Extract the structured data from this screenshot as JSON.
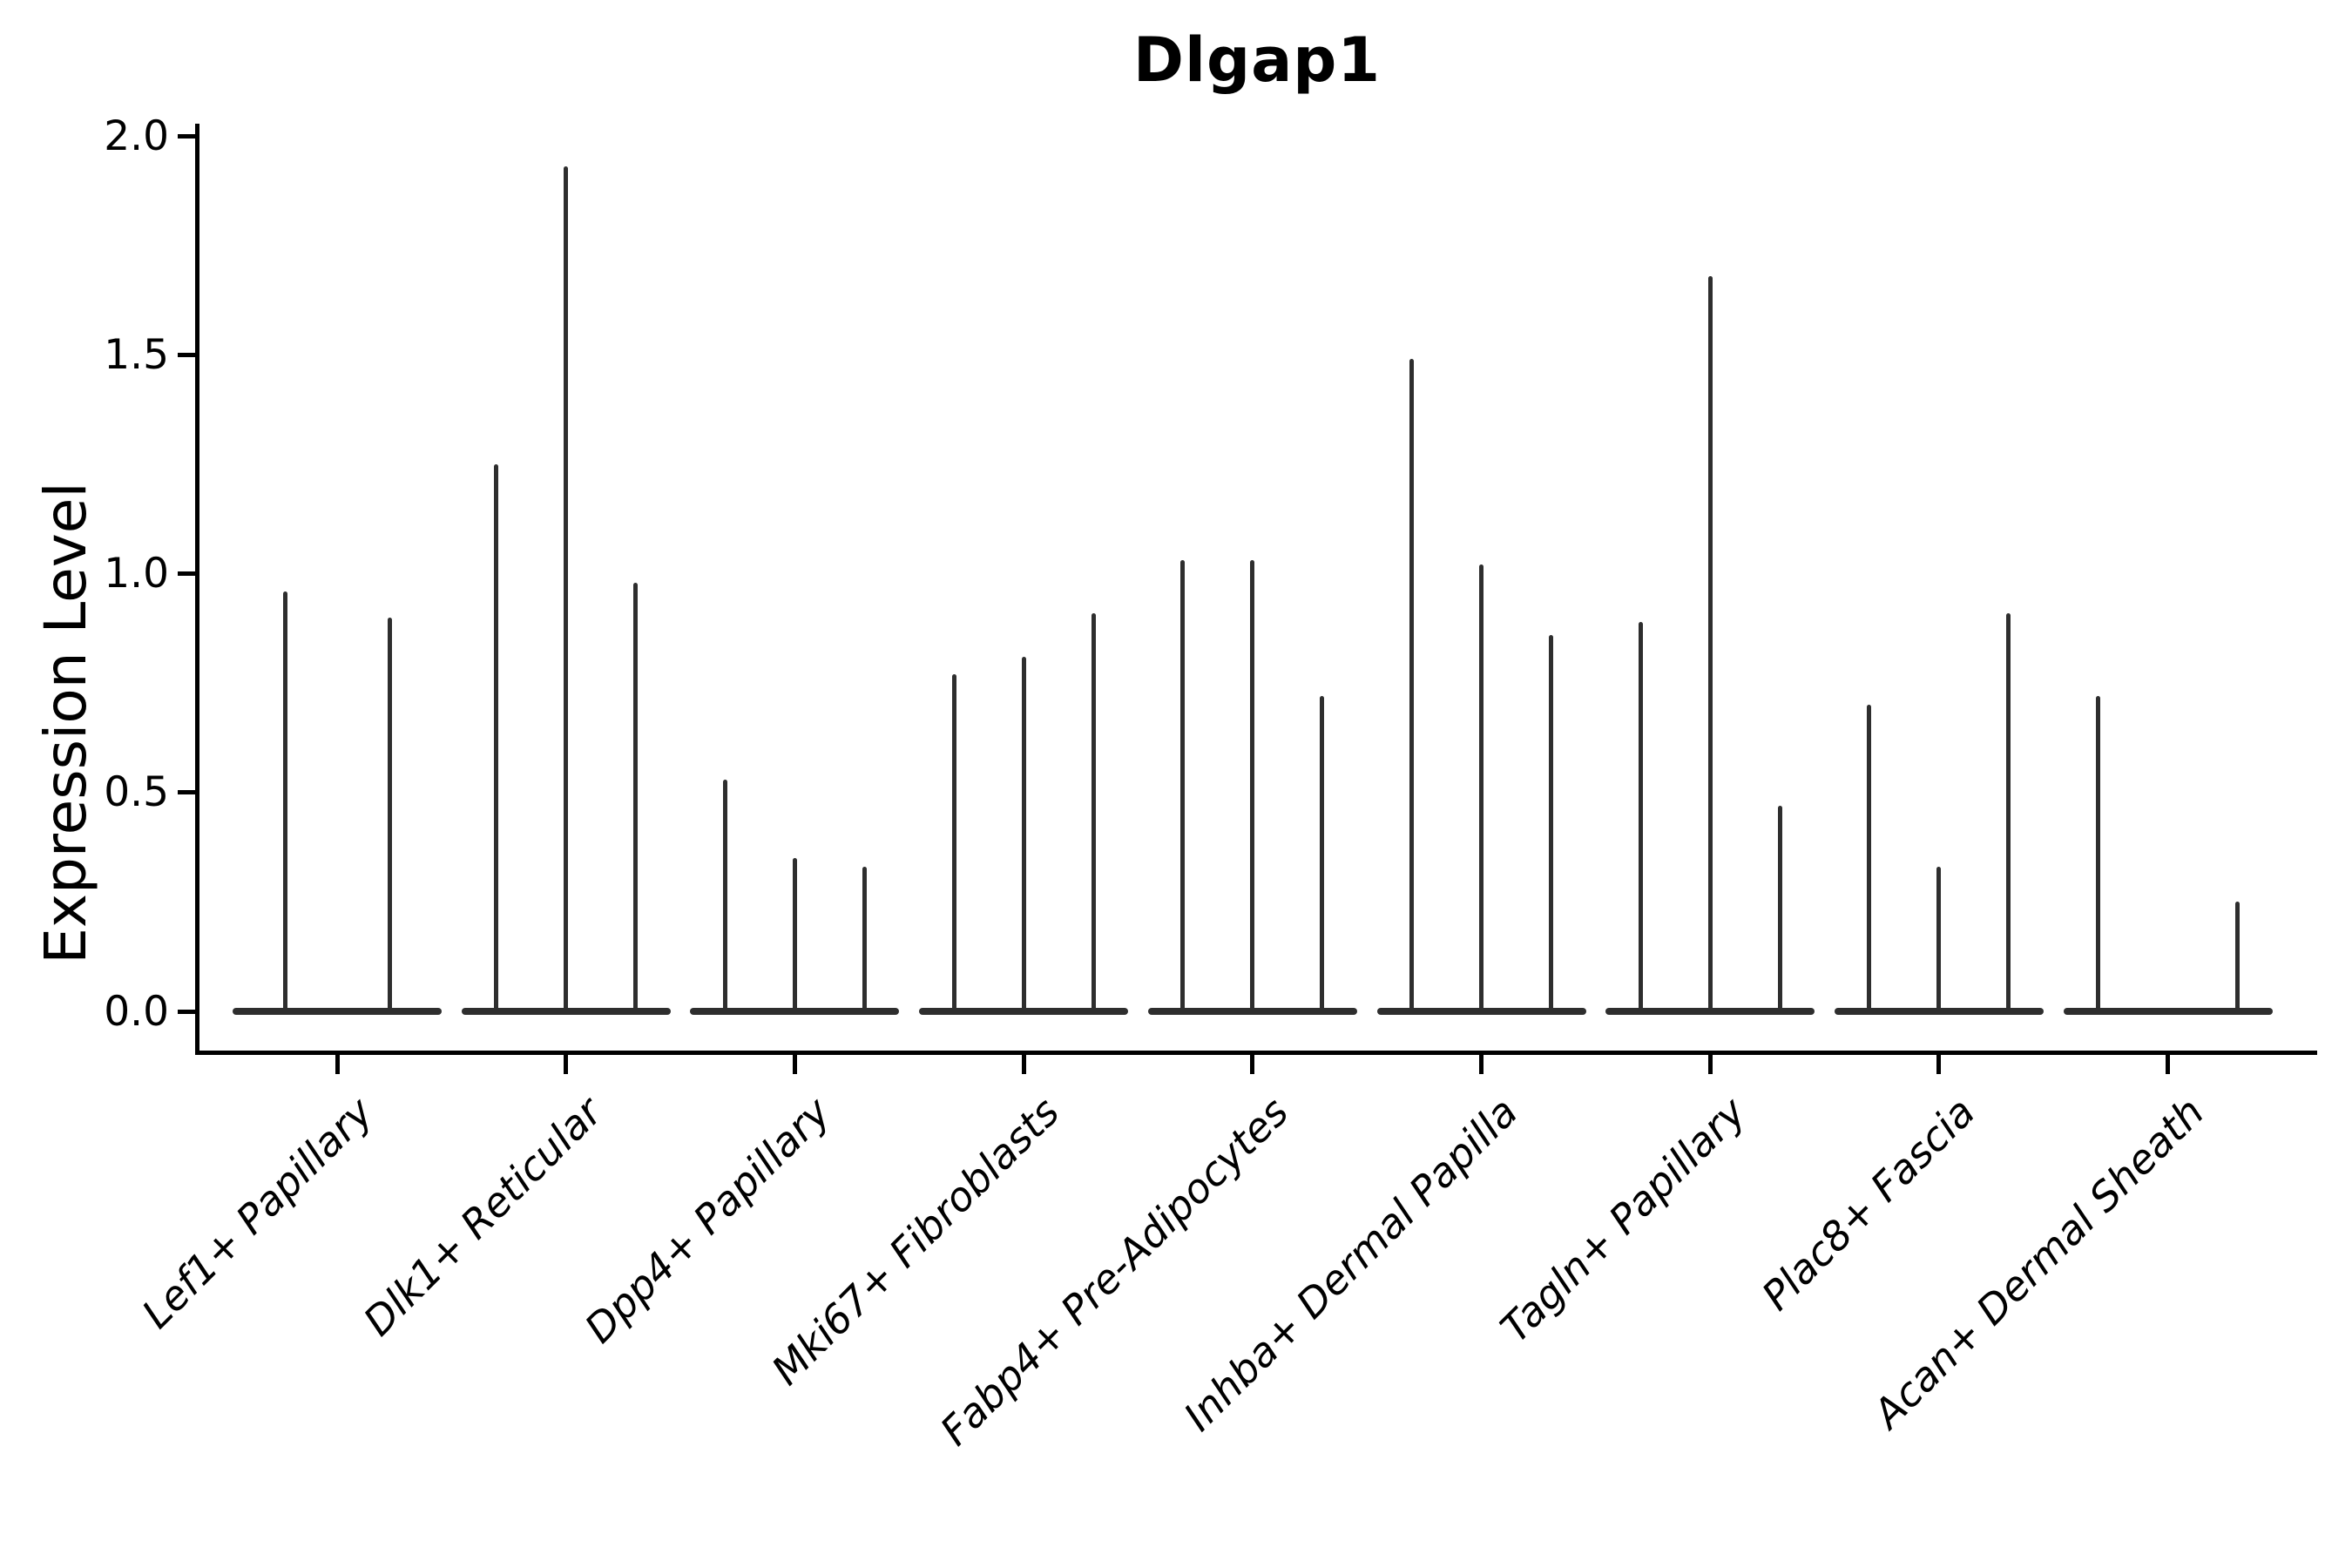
{
  "title": "Dlgap1",
  "y_axis": {
    "label": "Expression Level",
    "tick_labels": [
      "0.0",
      "0.5",
      "1.0",
      "1.5",
      "2.0"
    ]
  },
  "colors": {
    "background": "#ffffff",
    "axis": "#000000",
    "text": "#000000",
    "violin_line": "#2e2e2e"
  },
  "chart_data": {
    "type": "violin",
    "title": "Dlgap1",
    "xlabel": "",
    "ylabel": "Expression Level",
    "ylim": [
      0,
      2
    ],
    "yticks": [
      0,
      0.5,
      1,
      1.5,
      2
    ],
    "grid": false,
    "legend": false,
    "categories": [
      "Lef1+ Papillary",
      "Dlk1+ Reticular",
      "Dpp4+ Papillary",
      "Mki67+ Fibroblasts",
      "Fabp4+ Pre-Adipocytes",
      "Inhba+ Dermal Papilla",
      "Tagln+ Papillary",
      "Plac8+ Fascia",
      "Acan+ Dermal Sheath"
    ],
    "violins_per_category": [
      [
        0.96,
        0.9
      ],
      [
        1.25,
        1.93,
        0.98
      ],
      [
        0.53,
        0.35,
        0.33
      ],
      [
        0.77,
        0.81,
        0.91
      ],
      [
        1.03,
        1.03,
        0.72
      ],
      [
        1.49,
        1.02,
        0.86
      ],
      [
        0.89,
        1.68,
        0.47
      ],
      [
        0.7,
        0.33,
        0.91
      ],
      [
        0.72,
        0.0,
        0.25
      ]
    ],
    "note": "Needle-style violin plot: each category shows 2-3 extremely thin violins whose mass sits at expression 0 (flat dark base spanning the category) with a thin spike rising to the listed maximum expression value. A value of 0.0 means that violin is completely flat (base only, no spike)."
  }
}
